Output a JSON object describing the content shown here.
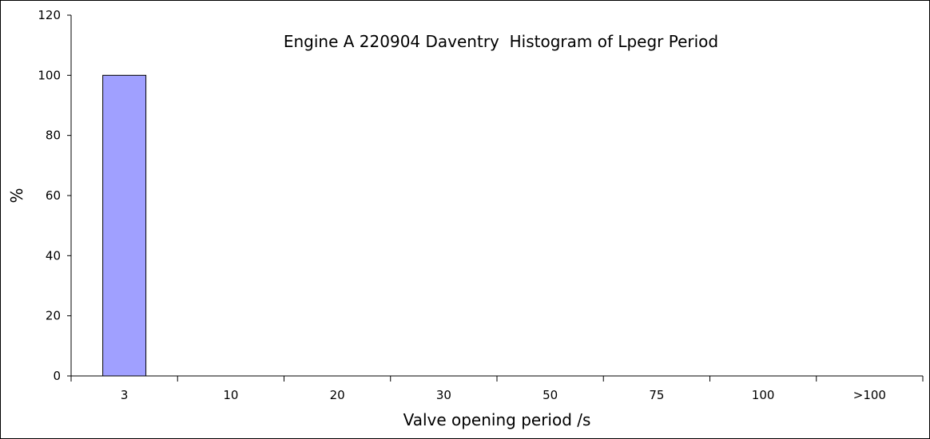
{
  "chart_data": {
    "type": "bar",
    "title": "Engine A 220904 Daventry  Histogram of Lpegr Period",
    "xlabel": "Valve opening period /s",
    "ylabel": "%",
    "categories": [
      "3",
      "10",
      "20",
      "30",
      "50",
      "75",
      "100",
      ">100"
    ],
    "values": [
      100,
      0,
      0,
      0,
      0,
      0,
      0,
      0
    ],
    "ylim": [
      0,
      120
    ],
    "yticks": [
      0,
      20,
      40,
      60,
      80,
      100,
      120
    ],
    "grid": false,
    "legend": "none",
    "bar_color": "#a0a0ff"
  }
}
